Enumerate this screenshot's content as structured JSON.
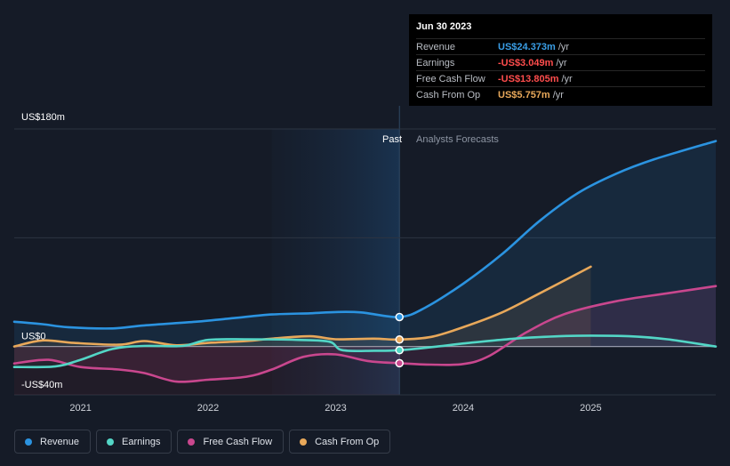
{
  "tooltip": {
    "date": "Jun 30 2023",
    "rows": [
      {
        "label": "Revenue",
        "value": "US$24.373m",
        "unit": "/yr",
        "color": "#3a9ee6"
      },
      {
        "label": "Earnings",
        "value": "-US$3.049m",
        "unit": "/yr",
        "color": "#ff4d4d"
      },
      {
        "label": "Free Cash Flow",
        "value": "-US$13.805m",
        "unit": "/yr",
        "color": "#ff4d4d"
      },
      {
        "label": "Cash From Op",
        "value": "US$5.757m",
        "unit": "/yr",
        "color": "#e8a85a"
      }
    ]
  },
  "labels": {
    "past": "Past",
    "forecast": "Analysts Forecasts"
  },
  "legend": [
    {
      "label": "Revenue",
      "color": "#2b93e0"
    },
    {
      "label": "Earnings",
      "color": "#53d6c6"
    },
    {
      "label": "Free Cash Flow",
      "color": "#c9478e"
    },
    {
      "label": "Cash From Op",
      "color": "#e8a85a"
    }
  ],
  "chart_data": {
    "type": "line",
    "title": "",
    "xlabel": "",
    "ylabel": "",
    "x_ticks": [
      2021,
      2022,
      2023,
      2024,
      2025
    ],
    "y_ticks": [
      {
        "value": 180,
        "label": "US$180m"
      },
      {
        "value": 0,
        "label": "US$0"
      },
      {
        "value": -40,
        "label": "-US$40m"
      }
    ],
    "ylim": [
      -40,
      180
    ],
    "xlim": [
      2020.48,
      2025.98
    ],
    "past_start": 2022.5,
    "past_end": 2023.5,
    "series": [
      {
        "name": "Revenue",
        "color": "#2b93e0",
        "points": [
          [
            2020.48,
            20.5
          ],
          [
            2020.7,
            18.5
          ],
          [
            2020.9,
            16
          ],
          [
            2021.25,
            15
          ],
          [
            2021.5,
            17.5
          ],
          [
            2021.9,
            20.5
          ],
          [
            2022.2,
            23.5
          ],
          [
            2022.5,
            26.5
          ],
          [
            2022.8,
            27.5
          ],
          [
            2023.0,
            28.5
          ],
          [
            2023.2,
            28.2
          ],
          [
            2023.5,
            24.4
          ],
          [
            2023.7,
            32
          ],
          [
            2024.0,
            52
          ],
          [
            2024.3,
            76
          ],
          [
            2024.6,
            104
          ],
          [
            2024.9,
            127
          ],
          [
            2025.2,
            143
          ],
          [
            2025.5,
            155
          ],
          [
            2025.98,
            170
          ]
        ]
      },
      {
        "name": "Earnings",
        "color": "#53d6c6",
        "points": [
          [
            2020.48,
            -17
          ],
          [
            2020.8,
            -16.5
          ],
          [
            2021.0,
            -11
          ],
          [
            2021.25,
            -2
          ],
          [
            2021.5,
            0.5
          ],
          [
            2021.8,
            0.5
          ],
          [
            2022.0,
            5.5
          ],
          [
            2022.3,
            6
          ],
          [
            2022.7,
            5.5
          ],
          [
            2022.95,
            4
          ],
          [
            2023.05,
            -3
          ],
          [
            2023.3,
            -3.5
          ],
          [
            2023.5,
            -3.05
          ],
          [
            2023.8,
            0
          ],
          [
            2024.0,
            2.5
          ],
          [
            2024.4,
            6.5
          ],
          [
            2024.75,
            8.5
          ],
          [
            2025.0,
            9
          ],
          [
            2025.3,
            8.5
          ],
          [
            2025.6,
            6
          ],
          [
            2025.98,
            0
          ]
        ]
      },
      {
        "name": "Free Cash Flow",
        "color": "#c9478e",
        "points": [
          [
            2020.48,
            -14
          ],
          [
            2020.75,
            -11
          ],
          [
            2021.0,
            -17
          ],
          [
            2021.3,
            -19
          ],
          [
            2021.5,
            -22
          ],
          [
            2021.75,
            -29
          ],
          [
            2022.0,
            -27.5
          ],
          [
            2022.3,
            -25
          ],
          [
            2022.5,
            -19
          ],
          [
            2022.75,
            -8.5
          ],
          [
            2023.0,
            -6.5
          ],
          [
            2023.25,
            -12
          ],
          [
            2023.5,
            -13.8
          ],
          [
            2023.75,
            -15
          ],
          [
            2024.0,
            -14.5
          ],
          [
            2024.2,
            -8
          ],
          [
            2024.5,
            12
          ],
          [
            2024.8,
            27
          ],
          [
            2025.2,
            37.5
          ],
          [
            2025.6,
            44
          ],
          [
            2025.98,
            50
          ]
        ]
      },
      {
        "name": "Cash From Op",
        "color": "#e8a85a",
        "points": [
          [
            2020.48,
            0
          ],
          [
            2020.7,
            5
          ],
          [
            2020.95,
            3
          ],
          [
            2021.3,
            1.5
          ],
          [
            2021.5,
            4.5
          ],
          [
            2021.75,
            1
          ],
          [
            2022.0,
            3
          ],
          [
            2022.3,
            4.5
          ],
          [
            2022.5,
            6.5
          ],
          [
            2022.8,
            8.5
          ],
          [
            2023.0,
            6
          ],
          [
            2023.3,
            6.5
          ],
          [
            2023.5,
            5.76
          ],
          [
            2023.75,
            8
          ],
          [
            2024.0,
            16
          ],
          [
            2024.3,
            28
          ],
          [
            2024.6,
            44
          ],
          [
            2025.0,
            66
          ]
        ]
      }
    ]
  }
}
